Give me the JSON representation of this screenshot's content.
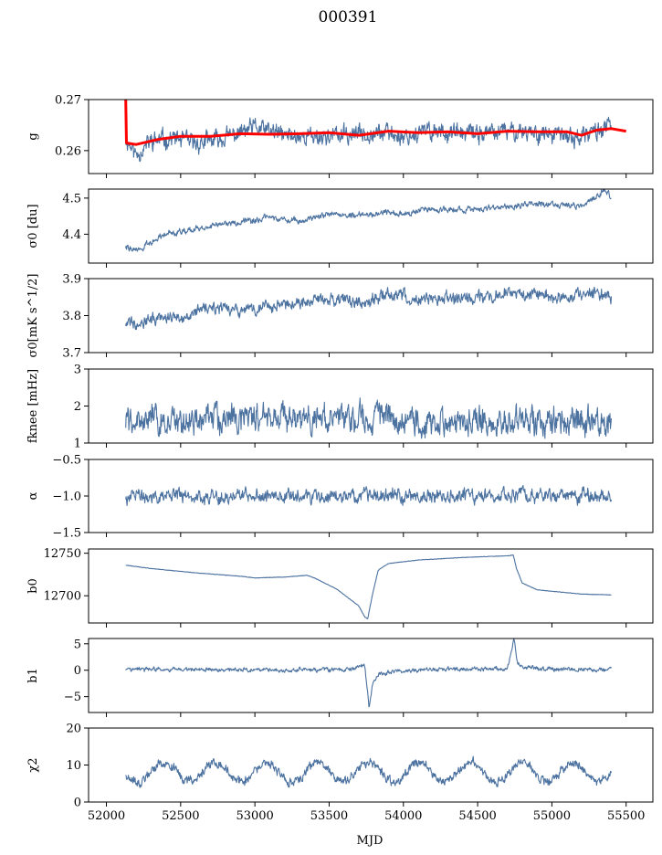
{
  "title": "000391",
  "colors": {
    "series": "#4c72a0",
    "fit": "#ff0000",
    "axis": "#000000",
    "background": "#ffffff"
  },
  "chart_data": [
    {
      "type": "line",
      "key": "g",
      "ylabel": "g",
      "ylim": [
        0.2555,
        0.27
      ],
      "xlim": [
        51880,
        55680
      ],
      "yticks": [
        0.26,
        0.27
      ],
      "ytick_labels": [
        "0.26",
        "0.27"
      ],
      "series": [
        {
          "name": "g",
          "style": "noise",
          "points": [
            [
              52130,
              0.2625
            ],
            [
              52200,
              0.2592
            ],
            [
              52300,
              0.2618
            ],
            [
              52450,
              0.2625
            ],
            [
              52600,
              0.2613
            ],
            [
              52800,
              0.2625
            ],
            [
              53000,
              0.2645
            ],
            [
              53200,
              0.263
            ],
            [
              53400,
              0.2628
            ],
            [
              53600,
              0.263
            ],
            [
              53800,
              0.2638
            ],
            [
              54000,
              0.2628
            ],
            [
              54200,
              0.264
            ],
            [
              54400,
              0.2632
            ],
            [
              54600,
              0.2635
            ],
            [
              54800,
              0.264
            ],
            [
              55000,
              0.263
            ],
            [
              55200,
              0.2625
            ],
            [
              55300,
              0.264
            ],
            [
              55400,
              0.2648
            ]
          ],
          "noise": 0.0013,
          "seed": 11
        },
        {
          "name": "g fit",
          "style": "fit",
          "points": [
            [
              52130,
              0.27
            ],
            [
              52135,
              0.2615
            ],
            [
              52200,
              0.2612
            ],
            [
              52350,
              0.2622
            ],
            [
              52500,
              0.2628
            ],
            [
              52700,
              0.2628
            ],
            [
              52900,
              0.2633
            ],
            [
              53100,
              0.2632
            ],
            [
              53300,
              0.2633
            ],
            [
              53500,
              0.2635
            ],
            [
              53700,
              0.263
            ],
            [
              53900,
              0.2638
            ],
            [
              54100,
              0.2635
            ],
            [
              54300,
              0.2637
            ],
            [
              54500,
              0.2633
            ],
            [
              54700,
              0.2638
            ],
            [
              54900,
              0.2637
            ],
            [
              55100,
              0.2637
            ],
            [
              55200,
              0.263
            ],
            [
              55300,
              0.264
            ],
            [
              55400,
              0.2643
            ],
            [
              55500,
              0.2638
            ]
          ]
        }
      ]
    },
    {
      "type": "line",
      "key": "sigma0_du",
      "ylabel": "σ0 [du]",
      "ylim": [
        4.32,
        4.525
      ],
      "xlim": [
        51880,
        55680
      ],
      "yticks": [
        4.4,
        4.5
      ],
      "ytick_labels": [
        "4.4",
        "4.5"
      ],
      "series": [
        {
          "name": "σ0 [du]",
          "style": "noise",
          "points": [
            [
              52130,
              4.365
            ],
            [
              52200,
              4.355
            ],
            [
              52300,
              4.375
            ],
            [
              52400,
              4.405
            ],
            [
              52550,
              4.408
            ],
            [
              52700,
              4.425
            ],
            [
              52900,
              4.432
            ],
            [
              53100,
              4.445
            ],
            [
              53300,
              4.438
            ],
            [
              53500,
              4.455
            ],
            [
              53700,
              4.452
            ],
            [
              53900,
              4.462
            ],
            [
              54000,
              4.455
            ],
            [
              54200,
              4.47
            ],
            [
              54400,
              4.468
            ],
            [
              54600,
              4.472
            ],
            [
              54800,
              4.482
            ],
            [
              55000,
              4.485
            ],
            [
              55200,
              4.475
            ],
            [
              55350,
              4.522
            ],
            [
              55400,
              4.505
            ]
          ],
          "noise": 0.006,
          "seed": 22
        }
      ]
    },
    {
      "type": "line",
      "key": "sigma0_mk",
      "ylabel": "σ0[mK s^1/2]",
      "ylim": [
        3.7,
        3.9
      ],
      "xlim": [
        51880,
        55680
      ],
      "yticks": [
        3.7,
        3.8,
        3.9
      ],
      "ytick_labels": [
        "3.7",
        "3.8",
        "3.9"
      ],
      "series": [
        {
          "name": "σ0[mK s^1/2]",
          "style": "noise",
          "points": [
            [
              52130,
              3.78
            ],
            [
              52300,
              3.79
            ],
            [
              52500,
              3.8
            ],
            [
              52700,
              3.82
            ],
            [
              52900,
              3.81
            ],
            [
              53100,
              3.825
            ],
            [
              53300,
              3.835
            ],
            [
              53500,
              3.845
            ],
            [
              53700,
              3.835
            ],
            [
              53900,
              3.86
            ],
            [
              54100,
              3.845
            ],
            [
              54300,
              3.845
            ],
            [
              54500,
              3.85
            ],
            [
              54700,
              3.86
            ],
            [
              54900,
              3.855
            ],
            [
              55100,
              3.85
            ],
            [
              55300,
              3.86
            ],
            [
              55400,
              3.85
            ]
          ],
          "noise": 0.012,
          "seed": 33
        }
      ]
    },
    {
      "type": "line",
      "key": "fknee",
      "ylabel": "fknee [mHz]",
      "ylim": [
        1,
        3
      ],
      "xlim": [
        51880,
        55680
      ],
      "yticks": [
        1,
        2,
        3
      ],
      "ytick_labels": [
        "1",
        "2",
        "3"
      ],
      "series": [
        {
          "name": "fknee [mHz]",
          "style": "noise",
          "points": [
            [
              52130,
              1.6
            ],
            [
              52500,
              1.6
            ],
            [
              53000,
              1.65
            ],
            [
              53500,
              1.65
            ],
            [
              53800,
              1.7
            ],
            [
              54200,
              1.55
            ],
            [
              54700,
              1.6
            ],
            [
              55000,
              1.65
            ],
            [
              55400,
              1.55
            ]
          ],
          "noise": 0.28,
          "seed": 44
        }
      ]
    },
    {
      "type": "line",
      "key": "alpha",
      "ylabel": "α",
      "ylim": [
        -1.5,
        -0.5
      ],
      "xlim": [
        51880,
        55680
      ],
      "yticks": [
        -1.5,
        -1.0,
        -0.5
      ],
      "ytick_labels": [
        "−1.5",
        "−1.0",
        "−0.5"
      ],
      "series": [
        {
          "name": "α",
          "style": "noise",
          "points": [
            [
              52130,
              -1.0
            ],
            [
              53000,
              -1.0
            ],
            [
              54000,
              -1.0
            ],
            [
              55400,
              -1.0
            ]
          ],
          "noise": 0.07,
          "seed": 55
        }
      ]
    },
    {
      "type": "line",
      "key": "b0",
      "ylabel": "b0",
      "ylim": [
        12668,
        12755
      ],
      "xlim": [
        51880,
        55680
      ],
      "yticks": [
        12700,
        12750
      ],
      "ytick_labels": [
        "12700",
        "12750"
      ],
      "series": [
        {
          "name": "b0",
          "style": "smooth",
          "points": [
            [
              52130,
              12736
            ],
            [
              52300,
              12732
            ],
            [
              52600,
              12727
            ],
            [
              52900,
              12723
            ],
            [
              53000,
              12721
            ],
            [
              53200,
              12722
            ],
            [
              53350,
              12724
            ],
            [
              53400,
              12721
            ],
            [
              53550,
              12708
            ],
            [
              53700,
              12688
            ],
            [
              53740,
              12675
            ],
            [
              53760,
              12673
            ],
            [
              53790,
              12700
            ],
            [
              53830,
              12730
            ],
            [
              53900,
              12738
            ],
            [
              54100,
              12742
            ],
            [
              54400,
              12745
            ],
            [
              54700,
              12747
            ],
            [
              54740,
              12748
            ],
            [
              54760,
              12733
            ],
            [
              54800,
              12715
            ],
            [
              54900,
              12707
            ],
            [
              55200,
              12702
            ],
            [
              55400,
              12701
            ]
          ],
          "noise": 0.25,
          "seed": 66
        }
      ]
    },
    {
      "type": "line",
      "key": "b1",
      "ylabel": "b1",
      "ylim": [
        -8,
        6
      ],
      "xlim": [
        51880,
        55680
      ],
      "yticks": [
        -5,
        0,
        5
      ],
      "ytick_labels": [
        "−5",
        "0",
        "5"
      ],
      "series": [
        {
          "name": "b1",
          "style": "noise",
          "points": [
            [
              52130,
              0.2
            ],
            [
              53000,
              0.0
            ],
            [
              53600,
              0.1
            ],
            [
              53700,
              0.5
            ],
            [
              53740,
              1.0
            ],
            [
              53755,
              -3.0
            ],
            [
              53770,
              -7.0
            ],
            [
              53790,
              -3.0
            ],
            [
              53830,
              -0.8
            ],
            [
              53900,
              -0.3
            ],
            [
              54000,
              0.0
            ],
            [
              54700,
              0.3
            ],
            [
              54745,
              5.8
            ],
            [
              54765,
              1.5
            ],
            [
              54800,
              0.6
            ],
            [
              55000,
              0.2
            ],
            [
              55400,
              0.0
            ]
          ],
          "noise": 0.28,
          "seed": 77
        }
      ]
    },
    {
      "type": "line",
      "key": "chi2",
      "ylabel": "χ2",
      "ylim": [
        0,
        20
      ],
      "xlim": [
        51880,
        55680
      ],
      "yticks": [
        0,
        10,
        20
      ],
      "ytick_labels": [
        "0",
        "10",
        "20"
      ],
      "series": [
        {
          "name": "χ2",
          "style": "periodic",
          "points": [
            [
              52130,
              8.0
            ],
            [
              55400,
              8.0
            ]
          ],
          "period": 345,
          "amplitude": 2.6,
          "phase_mjd": 52300,
          "noise": 0.9,
          "seed": 88
        }
      ]
    }
  ],
  "xaxis": {
    "label": "MJD",
    "ticks": [
      52000,
      52500,
      53000,
      53500,
      54000,
      54500,
      55000,
      55500
    ],
    "tick_labels": [
      "52000",
      "52500",
      "53000",
      "53500",
      "54000",
      "54500",
      "55000",
      "55500"
    ]
  }
}
